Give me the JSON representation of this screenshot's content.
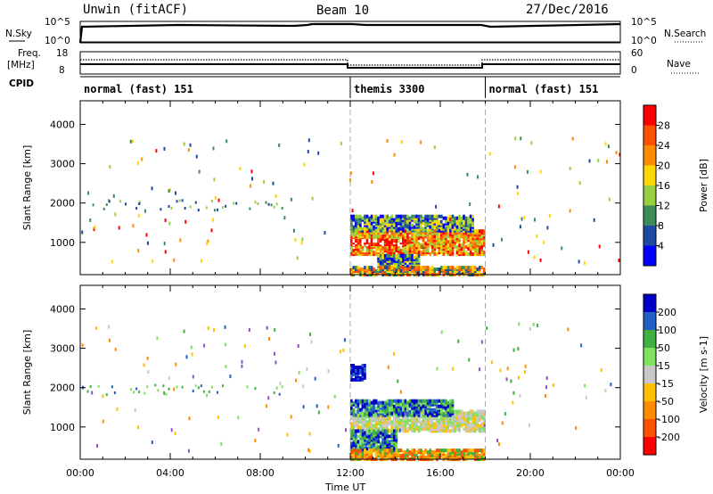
{
  "header": {
    "station": "Unwin (fitACF)",
    "beam": "Beam 10",
    "date": "27/Dec/2016"
  },
  "top_panels": {
    "nsky_label": "N.Sky",
    "nsky_ticks": [
      "10^5",
      "10^0"
    ],
    "nsearch_label": "N.Search",
    "freq_label_line1": "Freq.",
    "freq_label_line2": "[MHz]",
    "freq_ticks": [
      "18",
      "8"
    ],
    "nave_ticks": [
      "60",
      "0"
    ],
    "nave_label": "Nave",
    "cpid_label": "CPID",
    "cpid_segments": [
      {
        "label": "normal (fast) 151",
        "start_h": 0,
        "end_h": 12
      },
      {
        "label": "themis 3300",
        "start_h": 12,
        "end_h": 18
      },
      {
        "label": "normal (fast) 151",
        "start_h": 18,
        "end_h": 24
      }
    ]
  },
  "x_axis": {
    "title": "Time UT",
    "ticks": [
      "00:00",
      "04:00",
      "08:00",
      "12:00",
      "16:00",
      "20:00",
      "00:00"
    ]
  },
  "chart_data": [
    {
      "type": "heatmap",
      "name": "power",
      "ylabel": "Slant Range [km]",
      "yticks": [
        "4000",
        "3000",
        "2000",
        "1000"
      ],
      "ylim": [
        180,
        4600
      ],
      "xlim_hours": [
        0,
        24
      ],
      "colorbar_label": "Power [dB]",
      "colorbar_ticks": [
        "28",
        "24",
        "20",
        "16",
        "12",
        "8",
        "4"
      ],
      "colorbar_colors": [
        "#ff0000",
        "#ff5000",
        "#ff8c00",
        "#ffd700",
        "#98d040",
        "#3c8c5a",
        "#1c4aa0",
        "#0000ff"
      ],
      "patches": [
        {
          "h0": 12.0,
          "h1": 18.0,
          "r0": 700,
          "r1": 1300,
          "level": "high"
        },
        {
          "h0": 12.0,
          "h1": 17.5,
          "r0": 1300,
          "r1": 1700,
          "level": "mid"
        },
        {
          "h0": 12.0,
          "h1": 14.5,
          "r0": 950,
          "r1": 1050,
          "level": "peak"
        },
        {
          "h0": 13.2,
          "h1": 15.0,
          "r0": 300,
          "r1": 700,
          "level": "mid"
        },
        {
          "h0": 12.0,
          "h1": 18.0,
          "r0": 180,
          "r1": 400,
          "level": "low"
        }
      ]
    },
    {
      "type": "heatmap",
      "name": "velocity",
      "ylabel": "Slant Range [km]",
      "yticks": [
        "4000",
        "3000",
        "2000",
        "1000"
      ],
      "ylim": [
        180,
        4600
      ],
      "xlim_hours": [
        0,
        24
      ],
      "colorbar_label": "Velocity [m s-1]",
      "colorbar_ticks": [
        "200",
        "100",
        "50",
        "15",
        "-15",
        "-50",
        "-100",
        "-200"
      ],
      "colorbar_colors": [
        "#0000c8",
        "#2060c8",
        "#40b040",
        "#80e060",
        "#c8c8c8",
        "#ffc000",
        "#ff8c00",
        "#ff5000",
        "#ff0000"
      ],
      "patches": [
        {
          "h0": 12.0,
          "h1": 18.0,
          "r0": 900,
          "r1": 1400,
          "level": "zero"
        },
        {
          "h0": 12.0,
          "h1": 16.5,
          "r0": 1300,
          "r1": 1700,
          "level": "pos"
        },
        {
          "h0": 12.0,
          "h1": 14.0,
          "r0": 400,
          "r1": 900,
          "level": "pos"
        },
        {
          "h0": 12.0,
          "h1": 18.0,
          "r0": 180,
          "r1": 450,
          "level": "neg"
        },
        {
          "h0": 12.0,
          "h1": 12.6,
          "r0": 2200,
          "r1": 2600,
          "level": "strongpos"
        }
      ]
    }
  ]
}
